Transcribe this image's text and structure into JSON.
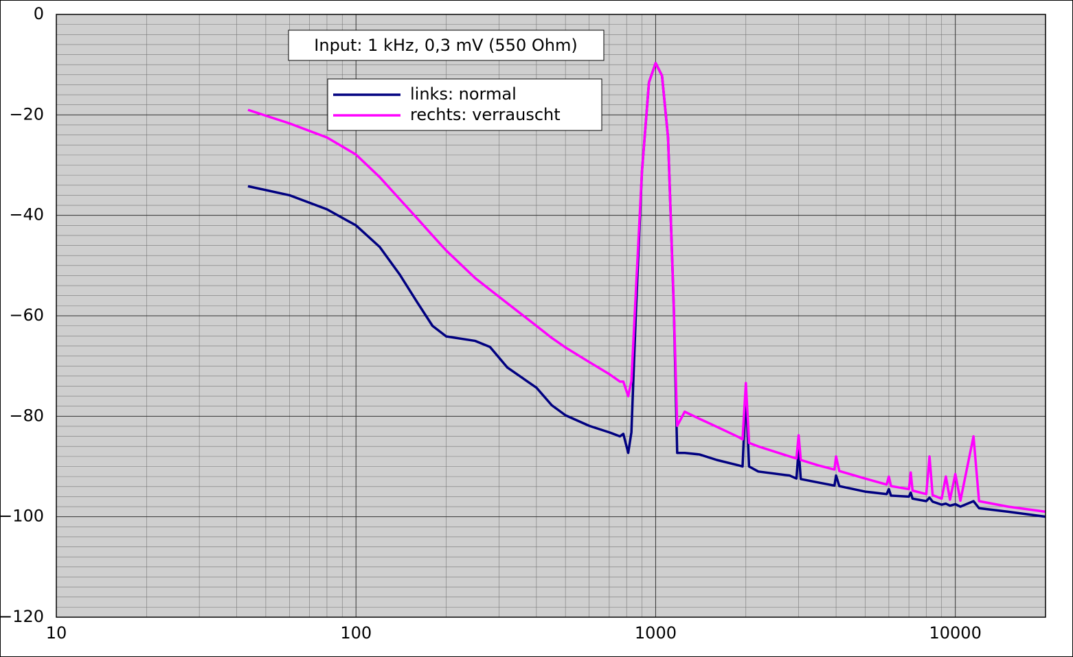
{
  "chart_data": {
    "type": "line",
    "annotation": "Input: 1 kHz, 0,3 mV (550 Ohm)",
    "xscale": "log",
    "grid": true,
    "minor_grid": true,
    "legend": "upper center",
    "xlim": [
      10,
      20000
    ],
    "xticks": [
      10,
      100,
      1000,
      10000
    ],
    "ylim": [
      -120,
      0
    ],
    "yticks": [
      {
        "value": -120,
        "label": "−120"
      },
      {
        "value": -100,
        "label": "−100"
      },
      {
        "value": -80,
        "label": "−80"
      },
      {
        "value": -60,
        "label": "−60"
      },
      {
        "value": -40,
        "label": "−40"
      },
      {
        "value": -20,
        "label": "−20"
      },
      0
    ],
    "x": [
      43.6,
      60,
      80,
      100,
      120,
      140,
      160,
      180,
      200,
      250,
      280,
      320,
      400,
      450,
      500,
      600,
      700,
      760,
      780,
      810,
      830,
      860,
      900,
      950,
      1000,
      1050,
      1100,
      1150,
      1180,
      1250,
      1400,
      1600,
      1900,
      1950,
      2000,
      2050,
      2200,
      2800,
      2950,
      3000,
      3050,
      3500,
      3950,
      4000,
      4100,
      5000,
      5900,
      6000,
      6100,
      7000,
      7100,
      7200,
      8000,
      8200,
      8400,
      9000,
      9300,
      9600,
      10000,
      10400,
      11500,
      12000,
      15000,
      20000
    ],
    "series": [
      {
        "name": "links: normal",
        "color": "#000080",
        "values": [
          -34.2,
          -36,
          -38.8,
          -42,
          -46.3,
          -51.8,
          -57.3,
          -62,
          -64.1,
          -65,
          -66.2,
          -70.3,
          -74.3,
          -77.8,
          -79.8,
          -81.9,
          -83.2,
          -84,
          -83.5,
          -87.3,
          -83.2,
          -58.6,
          -31.3,
          -13.5,
          -9.7,
          -12.2,
          -24.5,
          -58.6,
          -87.3,
          -87.3,
          -87.6,
          -88.7,
          -89.8,
          -90,
          -75,
          -90,
          -91,
          -91.8,
          -92.4,
          -86.6,
          -92.5,
          -93.2,
          -93.8,
          -91.8,
          -93.9,
          -95,
          -95.5,
          -94.5,
          -95.8,
          -96,
          -95.2,
          -96.4,
          -96.9,
          -96.2,
          -97,
          -97.6,
          -97.4,
          -97.8,
          -97.5,
          -98,
          -96.9,
          -98.3,
          -99,
          -100
        ]
      },
      {
        "name": "rechts: verrauscht",
        "color": "#ff00ff",
        "values": [
          -19,
          -21.7,
          -24.5,
          -27.9,
          -32.4,
          -36.8,
          -40.6,
          -44,
          -47,
          -52.5,
          -54.8,
          -57.5,
          -62,
          -64.4,
          -66.3,
          -69.2,
          -71.6,
          -73.1,
          -73.1,
          -76,
          -73,
          -54.5,
          -31.3,
          -13.5,
          -9.7,
          -12.2,
          -24.5,
          -58.6,
          -81.9,
          -79.1,
          -80.5,
          -82.1,
          -84.2,
          -84.6,
          -73.4,
          -85.3,
          -86,
          -88,
          -88.4,
          -83.8,
          -88.7,
          -89.8,
          -90.6,
          -88,
          -90.9,
          -92.4,
          -93.6,
          -92,
          -93.9,
          -94.5,
          -91.2,
          -94.8,
          -95.5,
          -88,
          -95.7,
          -96.4,
          -92,
          -96.6,
          -91.5,
          -96.8,
          -84,
          -96.9,
          -98,
          -99
        ]
      }
    ]
  }
}
